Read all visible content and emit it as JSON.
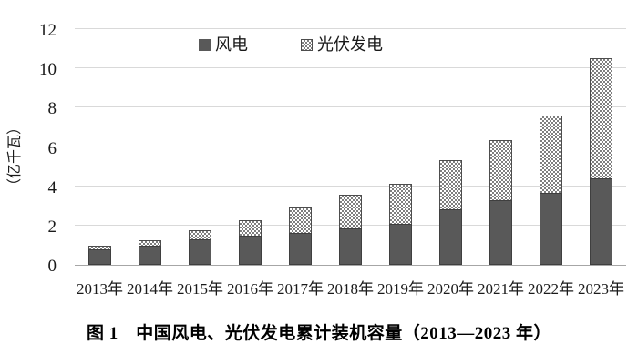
{
  "chart_data": {
    "type": "bar",
    "stacked": true,
    "title": "图 1　中国风电、光伏发电累计装机容量（2013—2023 年）",
    "ylabel": "（亿千瓦）",
    "xlabel": "",
    "categories": [
      "2013年",
      "2014年",
      "2015年",
      "2016年",
      "2017年",
      "2018年",
      "2019年",
      "2020年",
      "2021年",
      "2022年",
      "2023年"
    ],
    "series": [
      {
        "name": "风电",
        "pattern": "solid",
        "color": "#595959",
        "values": [
          0.77,
          0.96,
          1.31,
          1.49,
          1.64,
          1.84,
          2.1,
          2.82,
          3.28,
          3.65,
          4.41
        ]
      },
      {
        "name": "光伏发电",
        "pattern": "checker",
        "color": "#7f7f7f",
        "values": [
          0.19,
          0.28,
          0.43,
          0.77,
          1.3,
          1.74,
          2.04,
          2.53,
          3.06,
          3.93,
          6.09
        ]
      }
    ],
    "totals": [
      0.96,
      1.24,
      1.74,
      2.26,
      2.94,
      3.58,
      4.14,
      5.35,
      6.34,
      7.58,
      10.5
    ],
    "ylim": [
      0,
      12
    ],
    "yticks": [
      0,
      2,
      4,
      6,
      8,
      10,
      12
    ],
    "grid": true,
    "legend_position": "top-center",
    "colors": {
      "gridline": "#d9d9d9",
      "axis_line": "#a6a6a6",
      "wind_fill": "#595959",
      "wind_border": "#3f3f3f",
      "solar_checker_dark": "#7f7f7f",
      "solar_checker_light": "#ffffff",
      "solar_border": "#4d4d4d",
      "text": "#1a1a1a"
    }
  }
}
